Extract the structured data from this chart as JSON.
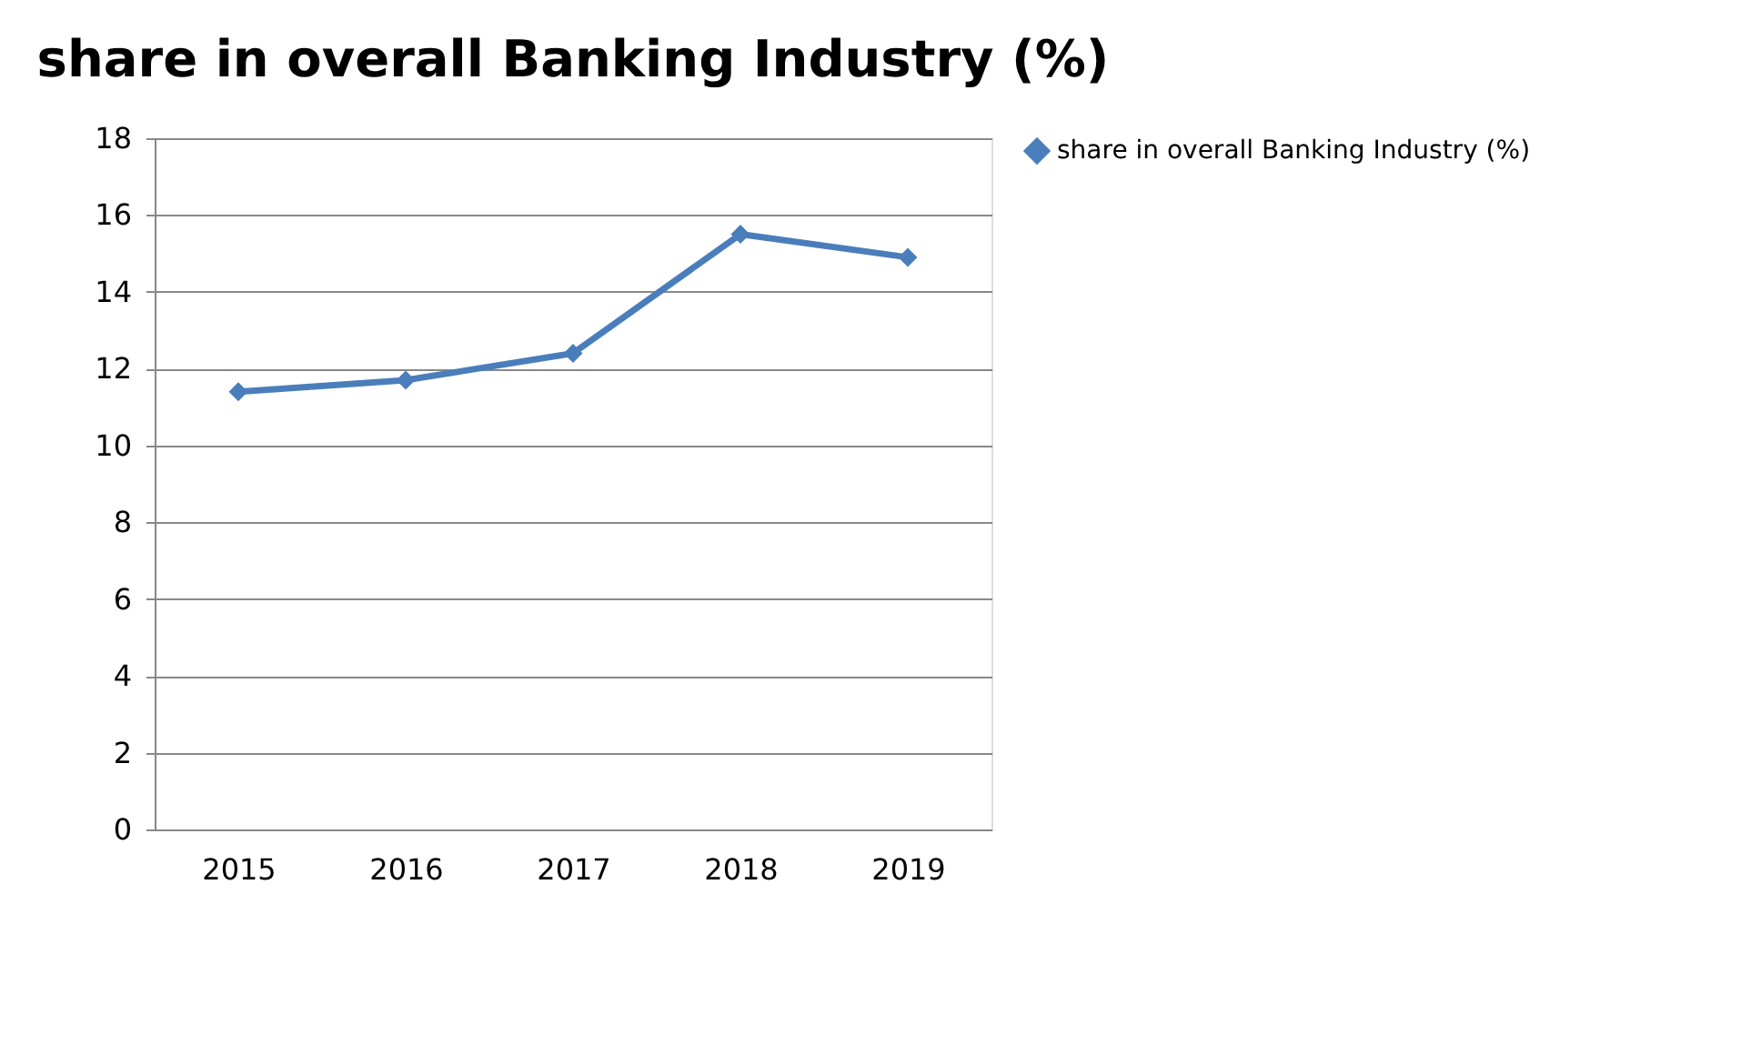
{
  "chart_data": {
    "type": "line",
    "title": "share in overall Banking Industry (%)",
    "categories": [
      "2015",
      "2016",
      "2017",
      "2018",
      "2019"
    ],
    "series": [
      {
        "name": "share in overall Banking Industry (%)",
        "color": "#4a7ebb",
        "values": [
          11.4,
          11.7,
          12.4,
          15.5,
          14.9
        ]
      }
    ],
    "ylim": [
      0,
      18
    ],
    "yticks": [
      0,
      2,
      4,
      6,
      8,
      10,
      12,
      14,
      16,
      18
    ],
    "grid": "y",
    "legend": "right",
    "marker": "diamond",
    "line_style": "solid"
  }
}
